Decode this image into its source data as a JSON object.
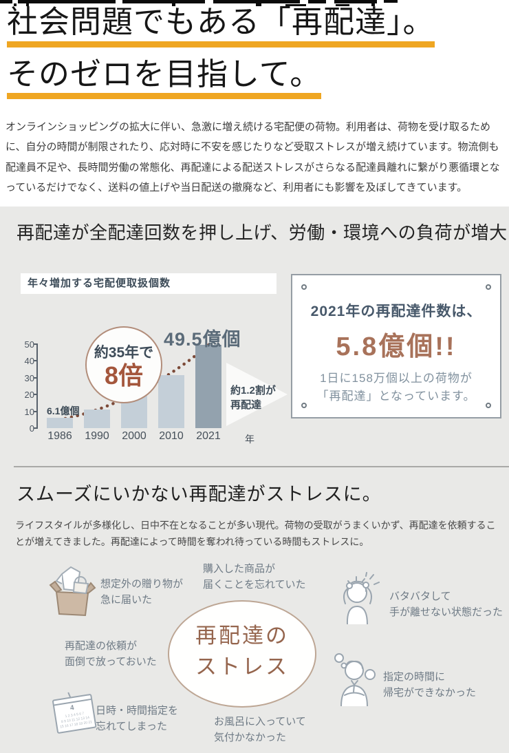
{
  "hero": {
    "title_line1": "社会問題でもある「再配達」。",
    "title_line2": "そのゼロを目指して。",
    "underline_color": "#efa622",
    "intro": "オンラインショッピングの拡大に伴い、急激に増え続ける宅配便の荷物。利用者は、荷物を受け取るために、自分の時間が制限されたり、応対時に不安を感じたりなど受取ストレスが増え続けています。物流側も配達員不足や、長時間労働の常態化、再配達による配送ストレスがさらなる配達員離れに繋がり悪循環となっているだけでなく、送料の値上げや当日配送の撤廃など、利用者にも影響を及ぼしてきています。"
  },
  "section1": {
    "heading": "再配達が全配達回数を押し上げ、労働・環境への負荷が増大"
  },
  "chart_data": {
    "type": "bar",
    "title": "年々増加する宅配便取扱個数",
    "categories": [
      "1986",
      "1990",
      "2000",
      "2010",
      "2021"
    ],
    "values": [
      6.1,
      11,
      22,
      31.4,
      49.5
    ],
    "x_unit_suffix": "年",
    "ylabel": "",
    "ylim": [
      0,
      50
    ],
    "yticks": [
      50,
      40,
      30,
      20,
      10,
      0
    ],
    "highlight_index": 4,
    "grid": false,
    "annotations": {
      "first_bar_label": "6.1億個",
      "last_bar_label": "49.5億個",
      "badge_line1": "約35年で",
      "badge_line2": "8倍",
      "arrow_line1": "約1.2割が",
      "arrow_line2": "再配達"
    },
    "colors": {
      "bar": "#c4cfd8",
      "bar_highlight": "#93a2ae",
      "dots": "#7c4a38",
      "axis": "#57616b"
    }
  },
  "signboard": {
    "line1": "2021年の再配達件数は、",
    "line2": "5.8億個!!",
    "line3": "1日に158万個以上の荷物が",
    "line4": "「再配達」となっています。",
    "accent_color": "#a8725a"
  },
  "section2": {
    "heading": "スムーズにいかない再配達がストレスに。",
    "body": "ライフスタイルが多様化し、日中不在となることが多い現代。荷物の受取がうまくいかず、再配達を依頼することが増えてきました。再配達によって時間を奪われ待っている時間もストレスに。",
    "center_line1": "再配達の",
    "center_line2": "ストレス",
    "labels": [
      {
        "text1": "想定外の贈り物が",
        "text2": "急に届いた"
      },
      {
        "text1": "購入した商品が",
        "text2": "届くことを忘れていた"
      },
      {
        "text1": "再配達の依頼が",
        "text2": "面倒で放っておいた"
      },
      {
        "text1": "バタバタして",
        "text2": "手が離せない状態だった"
      },
      {
        "text1": "指定の時間に",
        "text2": "帰宅ができなかった"
      },
      {
        "text1": "日時・時間指定を",
        "text2": "忘れてしまった"
      },
      {
        "text1": "お風呂に入っていて",
        "text2": "気付かなかった"
      }
    ],
    "calendar_number": "4"
  }
}
